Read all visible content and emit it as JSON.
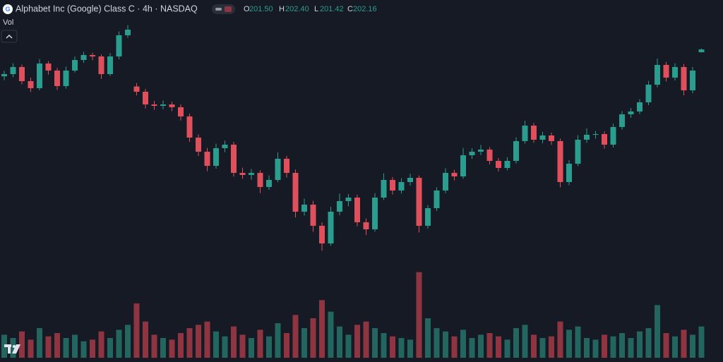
{
  "chart_data": {
    "type": "candlestick",
    "title": "Alphabet Inc (Google) Class C · 4h · NASDAQ",
    "ohlc_names": [
      "O",
      "H",
      "L",
      "C"
    ],
    "ohlc_value_labels": [
      "201.50",
      "202.40",
      "201.42",
      "202.16"
    ],
    "volume_label": "Vol",
    "up_color": "#2a9d8f",
    "down_color": "#e0505c",
    "volume_up_color": "#22665f",
    "volume_down_color": "#8e3541",
    "ylim": [
      152.16,
      213.83
    ],
    "vlim": [
      0,
      60
    ],
    "open": [
      195.8,
      196.33,
      198.0,
      194.66,
      193.0,
      198.83,
      197.16,
      193.5,
      197.16,
      199.66,
      200.83,
      200.5,
      196.33,
      200.5,
      205.5,
      193.4,
      192.16,
      189.16,
      188.83,
      189.16,
      188.5,
      186.33,
      181.33,
      178.0,
      174.66,
      178.83,
      179.66,
      173.0,
      172.5,
      173.0,
      169.66,
      171.33,
      176.33,
      173.0,
      163.83,
      165.5,
      160.5,
      156.33,
      163.83,
      166.33,
      167.16,
      161.33,
      159.66,
      167.16,
      171.33,
      168.83,
      170.83,
      171.83,
      160.5,
      164.66,
      168.83,
      173.0,
      172.16,
      177.16,
      178.0,
      178.5,
      175.83,
      174.16,
      175.83,
      180.5,
      184.16,
      180.83,
      181.83,
      180.5,
      170.83,
      175.16,
      180.83,
      182.0,
      182.16,
      179.66,
      183.83,
      186.83,
      187.5,
      189.66,
      193.83,
      198.5,
      195.5,
      198.0,
      192.5,
      201.5
    ],
    "high": [
      197.1,
      198.9,
      198.6,
      195.5,
      199.9,
      199.4,
      197.8,
      198.1,
      200.5,
      201.6,
      201.4,
      201.0,
      201.3,
      206.4,
      207.9,
      194.2,
      192.8,
      190.0,
      190.1,
      189.8,
      189.2,
      187.0,
      182.1,
      178.9,
      179.9,
      180.6,
      180.3,
      174.2,
      173.9,
      173.6,
      172.4,
      177.8,
      177.0,
      173.8,
      166.9,
      166.4,
      161.3,
      165.0,
      168.1,
      168.0,
      167.8,
      162.2,
      168.2,
      172.9,
      172.0,
      171.7,
      172.8,
      172.4,
      165.4,
      169.6,
      174.1,
      173.7,
      178.9,
      178.8,
      179.6,
      179.1,
      176.5,
      176.7,
      181.4,
      185.3,
      184.8,
      182.7,
      182.5,
      181.1,
      176.0,
      181.9,
      183.5,
      182.9,
      182.8,
      184.6,
      187.6,
      188.3,
      190.4,
      194.7,
      200.0,
      199.2,
      198.9,
      198.7,
      198.0,
      202.4
    ],
    "low": [
      194.9,
      195.6,
      193.9,
      192.1,
      192.5,
      196.2,
      192.6,
      192.9,
      196.7,
      199.0,
      199.6,
      195.2,
      195.9,
      199.8,
      204.9,
      191.3,
      188.2,
      187.9,
      188.0,
      187.6,
      185.4,
      180.3,
      177.0,
      173.4,
      174.0,
      177.9,
      172.1,
      171.6,
      171.4,
      168.2,
      169.0,
      170.8,
      171.9,
      162.5,
      162.9,
      159.1,
      154.6,
      155.8,
      163.0,
      165.1,
      160.4,
      158.3,
      159.1,
      166.6,
      167.9,
      168.1,
      170.0,
      158.9,
      159.8,
      164.0,
      168.2,
      171.2,
      171.6,
      176.3,
      177.2,
      175.0,
      173.3,
      173.6,
      175.2,
      179.9,
      180.1,
      180.0,
      179.6,
      169.6,
      170.1,
      174.6,
      180.1,
      181.1,
      178.7,
      179.0,
      183.2,
      186.0,
      186.9,
      189.0,
      193.2,
      194.6,
      194.8,
      191.3,
      191.8,
      201.42
    ],
    "close": [
      196.33,
      198.0,
      194.66,
      193.0,
      198.83,
      197.16,
      193.5,
      197.16,
      199.66,
      200.83,
      200.5,
      196.33,
      200.5,
      205.5,
      206.83,
      192.16,
      189.16,
      188.83,
      189.16,
      188.5,
      186.33,
      181.33,
      178.0,
      174.66,
      178.83,
      179.66,
      173.0,
      172.5,
      173.0,
      169.66,
      171.33,
      176.33,
      173.0,
      163.83,
      165.5,
      160.5,
      156.33,
      163.83,
      166.33,
      167.16,
      161.33,
      159.66,
      167.16,
      171.33,
      168.83,
      170.83,
      171.83,
      160.5,
      164.66,
      168.83,
      173.0,
      172.16,
      177.16,
      178.0,
      178.5,
      175.83,
      174.16,
      175.83,
      180.5,
      184.16,
      180.83,
      181.83,
      180.5,
      170.83,
      175.16,
      180.83,
      182.0,
      182.16,
      179.66,
      183.83,
      186.83,
      187.5,
      189.66,
      193.83,
      198.5,
      195.5,
      198.0,
      192.5,
      197.16,
      202.16
    ],
    "volume": [
      14,
      12,
      16,
      11,
      18,
      13,
      15,
      12,
      14,
      10,
      11,
      16,
      12,
      17,
      20,
      33,
      22,
      14,
      12,
      11,
      15,
      18,
      20,
      22,
      16,
      13,
      19,
      14,
      12,
      17,
      13,
      21,
      15,
      26,
      18,
      24,
      35,
      28,
      19,
      14,
      20,
      22,
      18,
      15,
      13,
      12,
      11,
      52,
      24,
      18,
      16,
      13,
      17,
      12,
      14,
      15,
      13,
      11,
      18,
      20,
      14,
      12,
      13,
      22,
      17,
      19,
      12,
      11,
      14,
      13,
      15,
      12,
      16,
      18,
      32,
      15,
      13,
      17,
      14,
      19
    ]
  }
}
